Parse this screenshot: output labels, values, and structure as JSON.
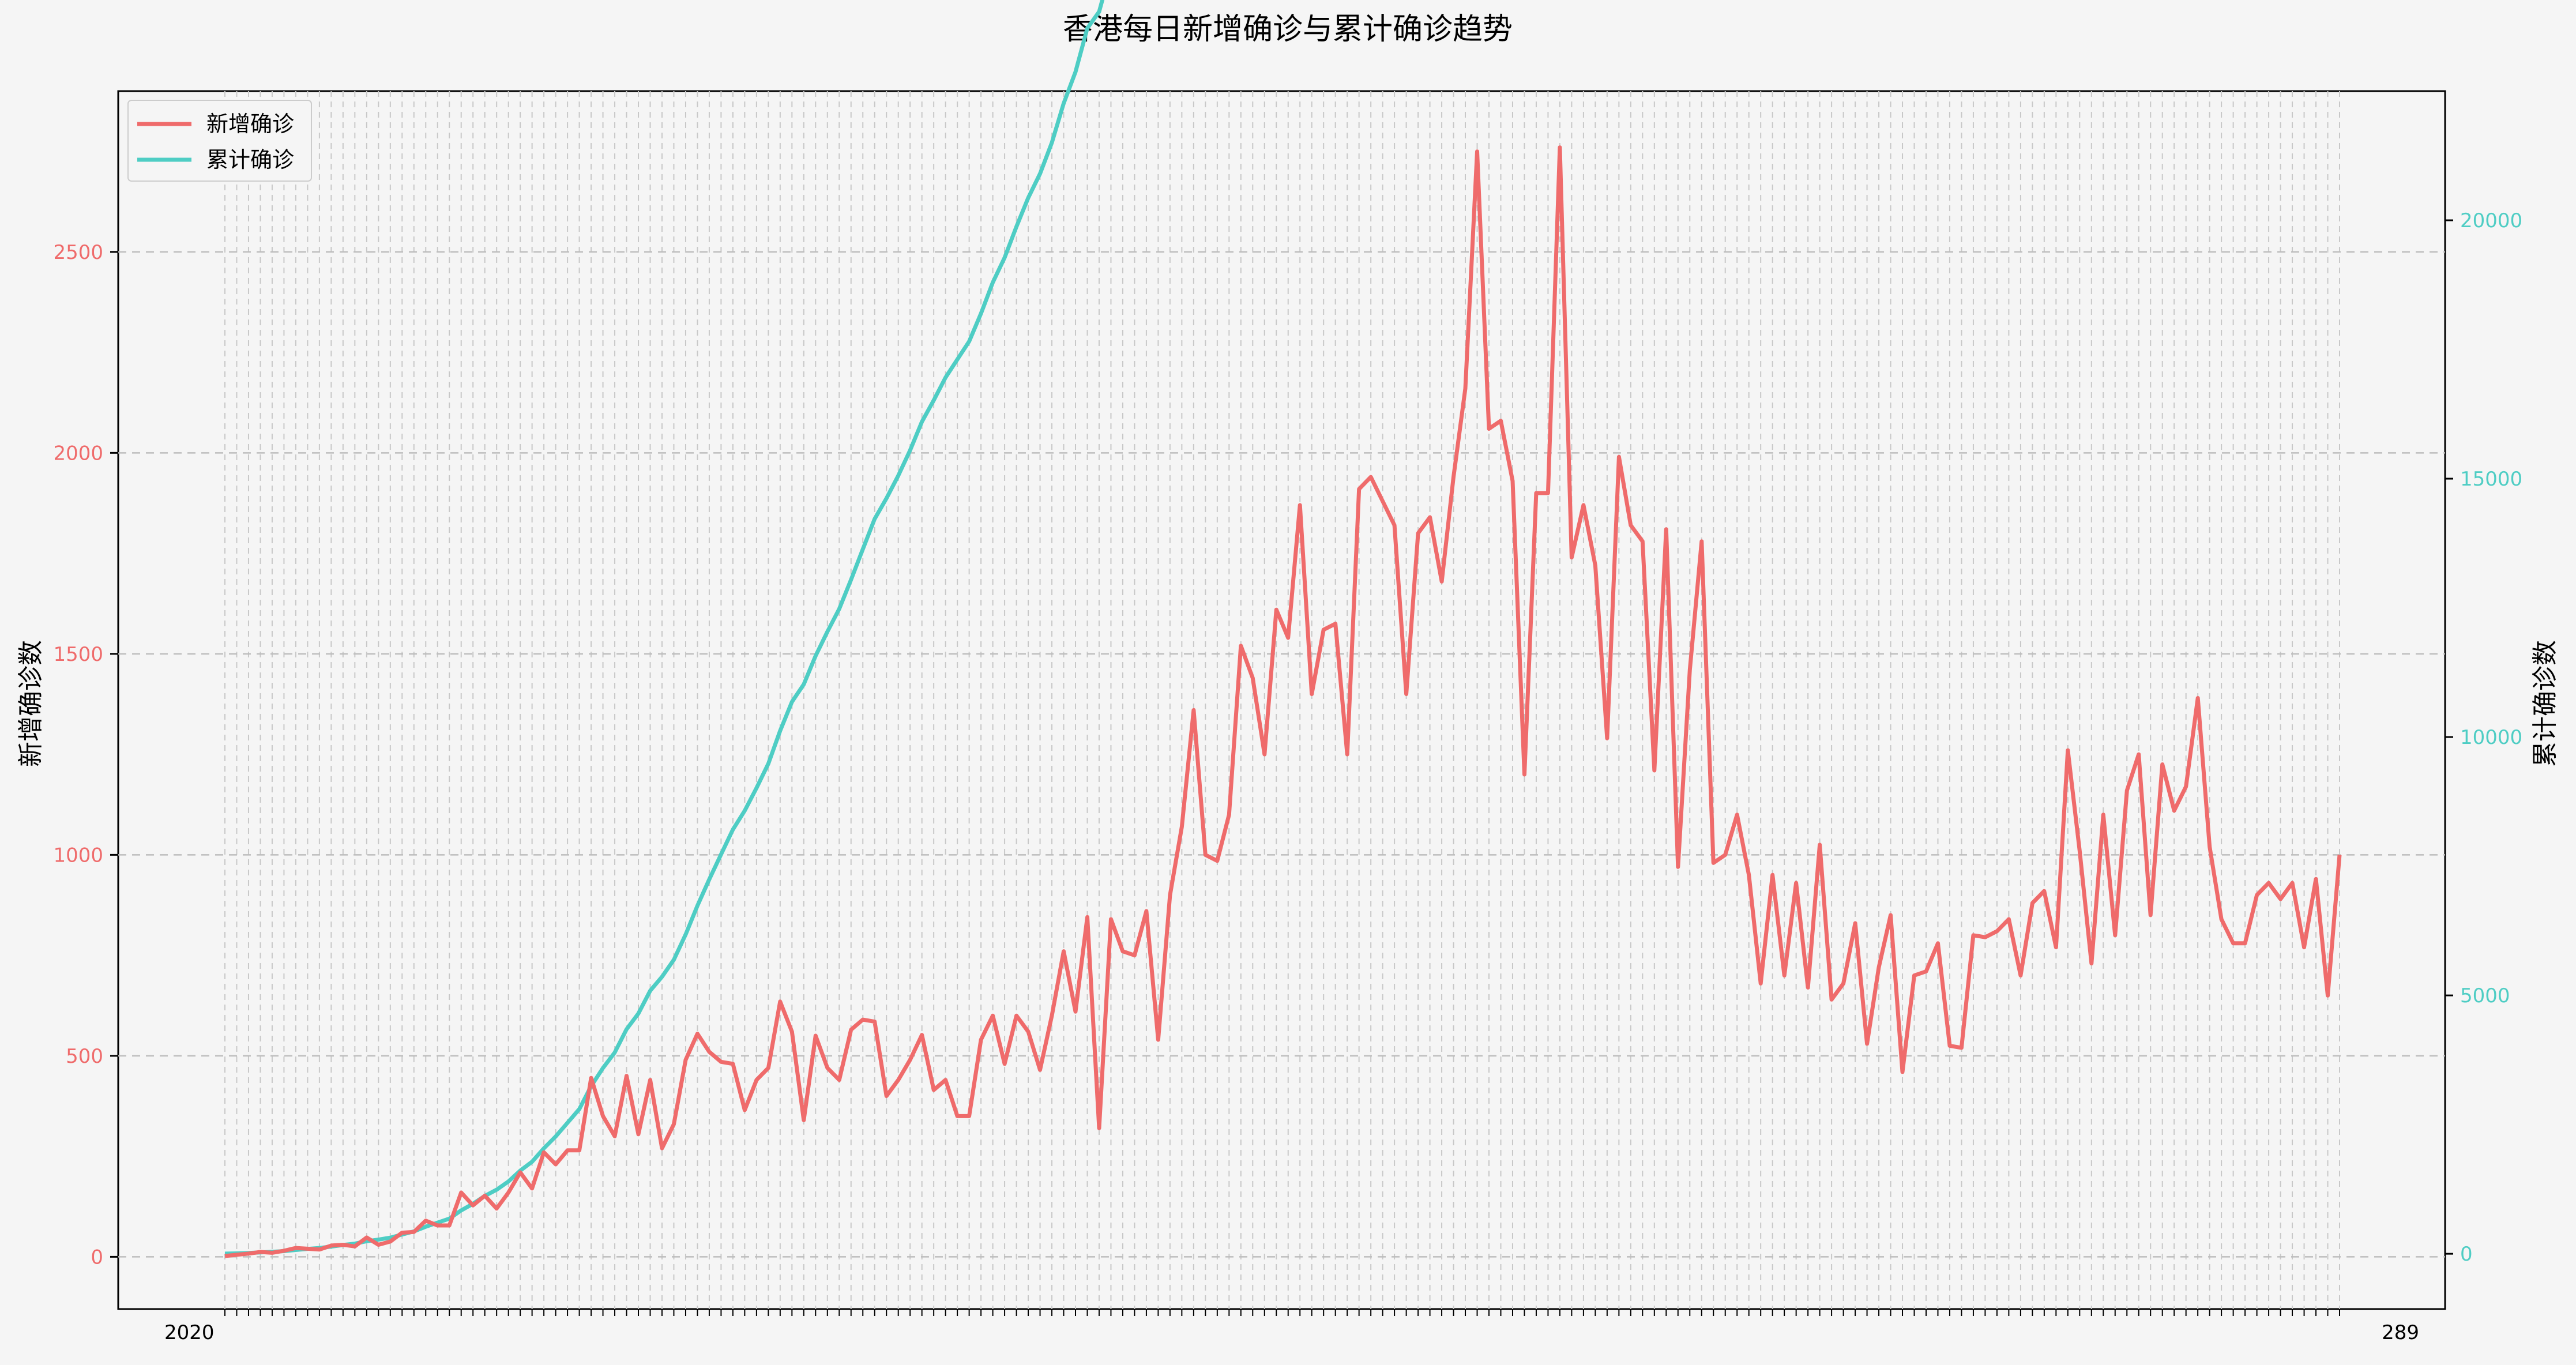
{
  "chart_data": {
    "type": "line",
    "title": "香港每日新增确诊与累计确诊趋势",
    "y_left_label": "新增确诊数",
    "y_right_label": "累计确诊数",
    "y_left_ticks": [
      0,
      500,
      1000,
      1500,
      2000,
      2500
    ],
    "y_right_ticks": [
      0,
      5000,
      10000,
      15000,
      20000
    ],
    "y_left_range": [
      -130,
      2900
    ],
    "y_right_range": [
      -1070,
      22500
    ],
    "grid": true,
    "legend_position": "top-left",
    "x_axis_note": "x tick labels are dense, overlapping date strings starting with 2020-... and ending ...289; unreadable individually",
    "x_tick_first": "2020",
    "x_tick_last": "289",
    "series": [
      {
        "name": "新增确诊",
        "color": "#ef6b6b",
        "axis": "left",
        "values": [
          2,
          5,
          8,
          12,
          10,
          15,
          22,
          20,
          18,
          28,
          30,
          26,
          48,
          30,
          38,
          60,
          62,
          90,
          78,
          78,
          160,
          128,
          152,
          120,
          160,
          210,
          170,
          260,
          230,
          265,
          265,
          445,
          350,
          300,
          450,
          305,
          440,
          270,
          330,
          490,
          555,
          510,
          485,
          480,
          365,
          440,
          470,
          635,
          560,
          340,
          550,
          470,
          440,
          565,
          590,
          585,
          400,
          440,
          490,
          552,
          415,
          440,
          350,
          350,
          540,
          600,
          480,
          600,
          560,
          465,
          600,
          760,
          610,
          845,
          320,
          840,
          760,
          750,
          860,
          540,
          900,
          1070,
          1360,
          1000,
          985,
          1100,
          1520,
          1440,
          1250,
          1610,
          1540,
          1870,
          1400,
          1560,
          1575,
          1250,
          1910,
          1940,
          1880,
          1820,
          1400,
          1800,
          1840,
          1680,
          1940,
          2160,
          2750,
          2060,
          2080,
          1930,
          1200,
          1900,
          1900,
          2760,
          1740,
          1870,
          1720,
          1290,
          1990,
          1820,
          1780,
          1210,
          1810,
          970,
          1460,
          1780,
          980,
          1000,
          1100,
          950,
          680,
          950,
          700,
          930,
          670,
          1025,
          640,
          680,
          830,
          530,
          720,
          850,
          460,
          700,
          710,
          780,
          525,
          520,
          800,
          795,
          810,
          840,
          700,
          880,
          910,
          770,
          1260,
          1010,
          730,
          1100,
          800,
          1160,
          1250,
          850,
          1225,
          1110,
          1170,
          1390,
          1020,
          840,
          780,
          780,
          900,
          930,
          890,
          930,
          770,
          940,
          650,
          1000
        ]
      },
      {
        "name": "累计确诊",
        "color": "#4ecdc4",
        "axis": "right",
        "values": []
      }
    ]
  }
}
